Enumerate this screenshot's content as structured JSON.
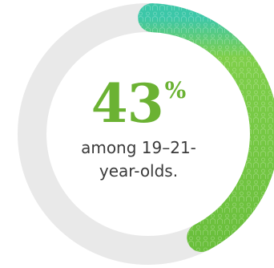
{
  "chart_data": {
    "type": "pie",
    "variant": "donut",
    "values": [
      43,
      57
    ],
    "percent_value": "43",
    "percent_sign": "%",
    "caption_line1": "among 19–21-",
    "caption_line2": "year-olds.",
    "colors": {
      "highlight": "#6abf3c",
      "highlight_light": "#7fcf4a",
      "highlight_start": "#3cc7a8",
      "track": "#e9e9e9",
      "value_text": "#6bb233"
    }
  }
}
